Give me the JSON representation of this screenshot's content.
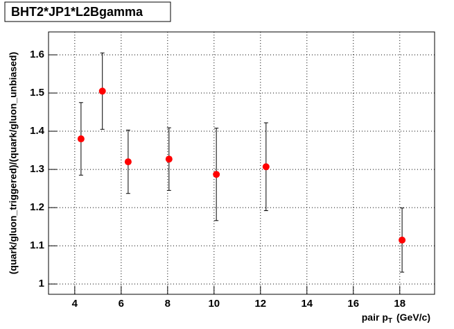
{
  "chart_data": {
    "type": "scatter",
    "title": "BHT2*JP1*L2Bgamma",
    "y_label": "(quark/gluon_triggered)/(quark/gluon_unbiased)",
    "x_label": {
      "text": "pair p",
      "subscript": "T",
      "suffix": "(GeV/c)"
    },
    "x": [
      4.27,
      5.19,
      6.3,
      8.06,
      10.1,
      12.24,
      18.1
    ],
    "values": [
      1.38,
      1.505,
      1.32,
      1.327,
      1.287,
      1.307,
      1.115
    ],
    "errors": [
      0.095,
      0.1,
      0.083,
      0.082,
      0.121,
      0.115,
      0.084
    ],
    "color": "#ff0000",
    "xlim": [
      2.87,
      19.5
    ],
    "ylim": [
      0.973,
      1.66
    ],
    "xticks": [
      4,
      6,
      8,
      10,
      12,
      14,
      16,
      18
    ],
    "yticks": [
      1,
      1.1,
      1.2,
      1.3,
      1.4,
      1.5,
      1.6
    ],
    "grid": true
  }
}
